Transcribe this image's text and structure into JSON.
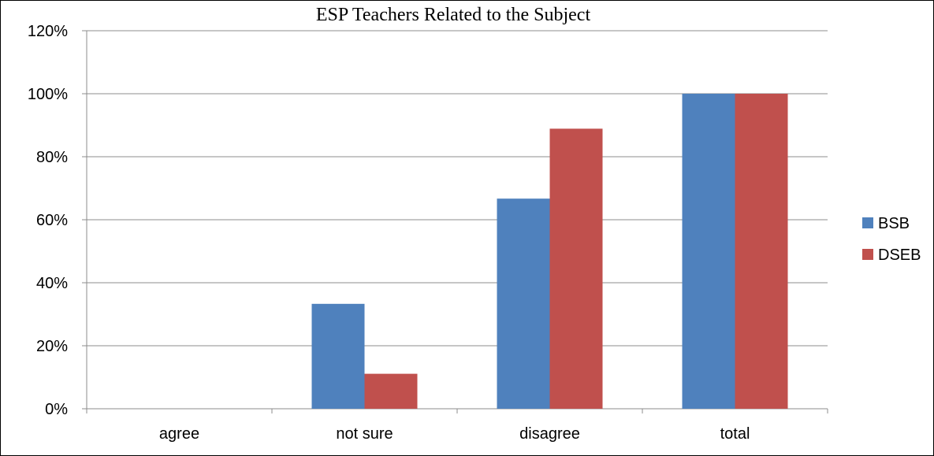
{
  "chart_data": {
    "type": "bar",
    "title": "ESP Teachers Related to the Subject",
    "xlabel": "",
    "ylabel": "",
    "categories": [
      "agree",
      "not sure",
      "disagree",
      "total"
    ],
    "series": [
      {
        "name": "BSB",
        "color": "#4F81BD",
        "values": [
          0,
          33.3,
          66.7,
          100
        ]
      },
      {
        "name": "DSEB",
        "color": "#C0504D",
        "values": [
          0,
          11.1,
          88.9,
          100
        ]
      }
    ],
    "ylim": [
      0,
      120
    ],
    "yticks": [
      0,
      20,
      40,
      60,
      80,
      100,
      120
    ],
    "ytick_labels": [
      "0%",
      "20%",
      "40%",
      "60%",
      "80%",
      "100%",
      "120%"
    ],
    "grid": true,
    "legend_position": "right"
  }
}
